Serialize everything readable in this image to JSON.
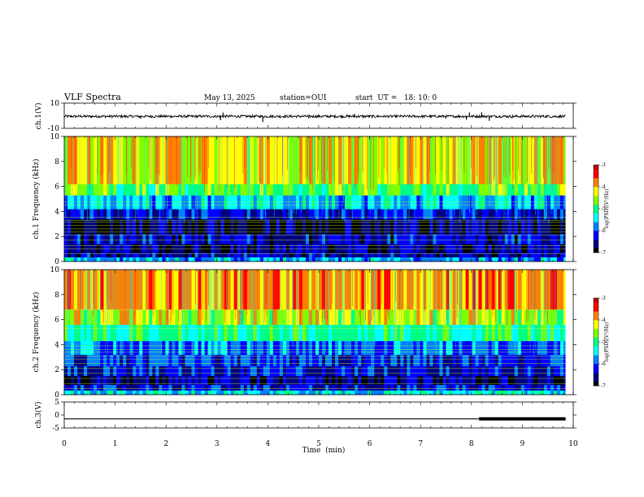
{
  "header": {
    "title": "VLF Spectra",
    "date": "May 13, 2025",
    "station": "station=OUI",
    "start": "start  UT =   18: 10: 0"
  },
  "chart_data": [
    {
      "type": "line",
      "panel": "ch1-waveform",
      "ylabel": "ch.1(V)",
      "ylim": [
        -10,
        10
      ],
      "yticks": [
        "10",
        "-10"
      ],
      "xlim": [
        0,
        10
      ],
      "baseline": -0.5,
      "noise_amplitude": 1.0,
      "spikes": [
        [
          1.5,
          -2.5
        ],
        [
          3.07,
          -3.5
        ],
        [
          3.12,
          2.5
        ],
        [
          3.9,
          -5
        ],
        [
          4.8,
          -2
        ],
        [
          5.7,
          1.5
        ],
        [
          7.5,
          -2.2
        ],
        [
          7.9,
          -3.2
        ],
        [
          7.96,
          2.6
        ],
        [
          8.2,
          2.6
        ],
        [
          8.35,
          -4
        ],
        [
          8.8,
          -2
        ]
      ],
      "color": "#000000"
    },
    {
      "type": "heatmap",
      "panel": "ch1-spectrogram",
      "ylabel": "ch.1 Frequency (kHz)",
      "ylim": [
        0,
        10
      ],
      "yticks": [
        "0",
        "2",
        "4",
        "6",
        "8",
        "10"
      ],
      "xlim": [
        0,
        10
      ],
      "colorbar": {
        "label": "log(PSD)(V²/Hz)",
        "range": [
          -7,
          -3
        ],
        "ticks": [
          "-3",
          "-4",
          "-5",
          "-6",
          "-7"
        ]
      },
      "bands": [
        {
          "f_from": 0.0,
          "f_to": 0.35,
          "level": -5.6
        },
        {
          "f_from": 0.35,
          "f_to": 0.7,
          "level": -6.4
        },
        {
          "f_from": 0.7,
          "f_to": 1.4,
          "level": -6.6
        },
        {
          "f_from": 1.4,
          "f_to": 2.2,
          "level": -6.4
        },
        {
          "f_from": 2.2,
          "f_to": 3.4,
          "level": -6.7
        },
        {
          "f_from": 3.4,
          "f_to": 4.2,
          "level": -6.3
        },
        {
          "f_from": 4.2,
          "f_to": 5.3,
          "level": -5.6
        },
        {
          "f_from": 5.3,
          "f_to": 6.2,
          "level": -4.8
        },
        {
          "f_from": 6.2,
          "f_to": 10.0,
          "level": -4.2
        }
      ],
      "lines_khz": [
        0.6,
        1.0,
        1.25,
        1.7,
        2.1,
        2.35,
        2.6,
        2.9,
        3.15,
        3.3,
        3.55,
        4.5,
        4.75
      ]
    },
    {
      "type": "heatmap",
      "panel": "ch2-spectrogram",
      "ylabel": "ch.2 Frequency (kHz)",
      "ylim": [
        0,
        10
      ],
      "yticks": [
        "0",
        "2",
        "4",
        "6",
        "8",
        "10"
      ],
      "xlim": [
        0,
        10
      ],
      "colorbar": {
        "label": "log(PSD)(V²/Hz)",
        "range": [
          -7,
          -3
        ],
        "ticks": [
          "-3",
          "-4",
          "-5",
          "-6",
          "-7"
        ]
      },
      "bands": [
        {
          "f_from": 0.0,
          "f_to": 0.35,
          "level": -5.4
        },
        {
          "f_from": 0.35,
          "f_to": 0.8,
          "level": -6.3
        },
        {
          "f_from": 0.8,
          "f_to": 1.5,
          "level": -6.5
        },
        {
          "f_from": 1.5,
          "f_to": 2.3,
          "level": -6.3
        },
        {
          "f_from": 2.3,
          "f_to": 3.2,
          "level": -6.1
        },
        {
          "f_from": 3.2,
          "f_to": 4.3,
          "level": -5.9
        },
        {
          "f_from": 4.3,
          "f_to": 5.6,
          "level": -5.0
        },
        {
          "f_from": 5.6,
          "f_to": 6.8,
          "level": -4.4
        },
        {
          "f_from": 6.8,
          "f_to": 10.0,
          "level": -3.9
        }
      ],
      "lines_khz": [
        0.5,
        0.9,
        1.3,
        1.7,
        2.1,
        2.5,
        2.85,
        3.1,
        3.4,
        3.6,
        3.9,
        5.3,
        6.8
      ]
    },
    {
      "type": "line",
      "panel": "ch3-waveform",
      "ylabel": "ch.3(V)",
      "ylim": [
        -5,
        5
      ],
      "yticks": [
        "5",
        "0",
        "-5"
      ],
      "xlim": [
        0,
        10
      ],
      "baseline": -1.5,
      "thick_from": 8.15,
      "color": "#000000"
    }
  ],
  "x_axis": {
    "label": "Time  (min)",
    "ticks": [
      "0",
      "1",
      "2",
      "3",
      "4",
      "5",
      "6",
      "7",
      "8",
      "9",
      "10"
    ]
  },
  "colors": {
    "colormap": [
      "#000000",
      "#000080",
      "#0000ff",
      "#0080ff",
      "#00ffff",
      "#00ff80",
      "#80ff00",
      "#ffff00",
      "#ff8000",
      "#ff0000",
      "#c00000"
    ]
  }
}
